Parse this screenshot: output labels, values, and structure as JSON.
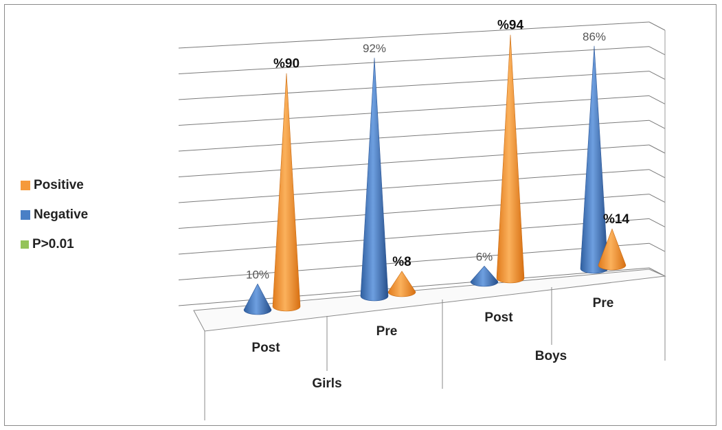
{
  "chart_data": {
    "type": "bar",
    "style": "3d-cone",
    "groups": [
      {
        "name": "Girls",
        "categories": [
          "Post",
          "Pre"
        ]
      },
      {
        "name": "Boys",
        "categories": [
          "Post",
          "Pre"
        ]
      }
    ],
    "categories": [
      "Girls Post",
      "Girls Pre",
      "Boys Post",
      "Boys Pre"
    ],
    "series": [
      {
        "name": "Negative",
        "color": "#4a7fc6",
        "values": [
          10,
          92,
          6,
          86
        ],
        "labels": [
          "10%",
          "92%",
          "6%",
          "86%"
        ]
      },
      {
        "name": "Positive",
        "color": "#f59a3b",
        "values": [
          90,
          8,
          94,
          14
        ],
        "labels": [
          "%90",
          "%8",
          "%94",
          "%14"
        ]
      }
    ],
    "ylim": [
      0,
      100
    ],
    "grid": true,
    "legend": {
      "placement": "left",
      "items": [
        {
          "label": "Positive",
          "color": "#f59a3b"
        },
        {
          "label": "Negative",
          "color": "#4a7fc6"
        },
        {
          "label": "P>0.01",
          "color": "#94c35a"
        }
      ]
    }
  }
}
